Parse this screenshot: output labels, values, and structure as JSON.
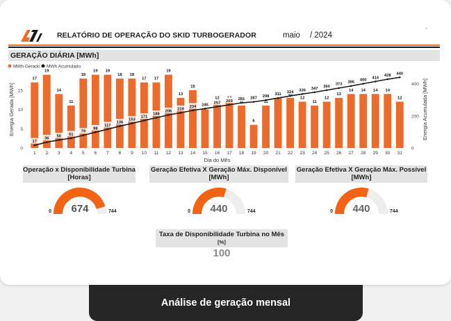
{
  "report": {
    "title": "RELATÓRIO DE OPERAÇÃO DO SKID TURBOGERADOR",
    "month": "maio",
    "year": "/ 2024",
    "corner_mark": "-",
    "brand_colors": {
      "orange": "#ec6a2c",
      "black": "#1a1a1a",
      "gray_bar": "#e3e3e3"
    }
  },
  "section": {
    "title": "GERAÇÃO DIÁRIA [MWh]"
  },
  "chart_data": {
    "type": "bar",
    "legend_placement": "top-left",
    "xlabel": "Dia do Mês",
    "ylabel_left": "Energia Gerada [MWh]",
    "ylabel_right": "Energia Acumulada [MWh]",
    "ylim_left": [
      0,
      20
    ],
    "ylim_right": [
      0,
      480
    ],
    "yticks_left": [
      0,
      5,
      10,
      15
    ],
    "yticks_right": [
      0,
      200,
      400
    ],
    "categories": [
      "1",
      "2",
      "3",
      "4",
      "5",
      "6",
      "7",
      "8",
      "9",
      "10",
      "11",
      "12",
      "13",
      "14",
      "15",
      "16",
      "17",
      "18",
      "19",
      "20",
      "21",
      "22",
      "23",
      "24",
      "25",
      "26",
      "27",
      "28",
      "29",
      "30",
      "31"
    ],
    "series": [
      {
        "name": "MWh Gerado",
        "type": "bar",
        "color": "#ec6a2c",
        "values": [
          17,
          19,
          14,
          11,
          18,
          19,
          19,
          18,
          18,
          17,
          17,
          19,
          13,
          15,
          10,
          12,
          12,
          11,
          6,
          11,
          13,
          13,
          12,
          11,
          12,
          13,
          14,
          14,
          14,
          14,
          12
        ]
      },
      {
        "name": "MWh Acumulado",
        "type": "line",
        "color": "#1a1a1a",
        "values": [
          17,
          36,
          50,
          61,
          79,
          98,
          117,
          136,
          153,
          171,
          188,
          206,
          219,
          234,
          245,
          257,
          269,
          281,
          287,
          298,
          311,
          324,
          336,
          347,
          360,
          373,
          386,
          400,
          414,
          428,
          440
        ]
      }
    ]
  },
  "kpis": [
    {
      "title_line1": "Operação x Disponibilidade Turbina",
      "title_line2": "[Horas]",
      "value": "674",
      "min": "0",
      "max": "744",
      "fraction": 0.906,
      "value_color": "#555555"
    },
    {
      "title_line1": "Geração Efetiva X Geração Máx. Disponível",
      "title_line2": "[MWh]",
      "value": "440",
      "min": "0",
      "max": "744",
      "fraction": 0.591,
      "value_color": "#666666"
    },
    {
      "title_line1": "Geração Efetiva X Geração Máx. Possível",
      "title_line2": "[MWh]",
      "value": "440",
      "min": "0",
      "max": "744",
      "fraction": 0.591,
      "value_color": "#666666"
    }
  ],
  "availability": {
    "title": "Taxa de Disponibilidade Turbina no Mês",
    "unit": "[%]",
    "value": "100"
  },
  "caption": "Análise de geração mensal"
}
